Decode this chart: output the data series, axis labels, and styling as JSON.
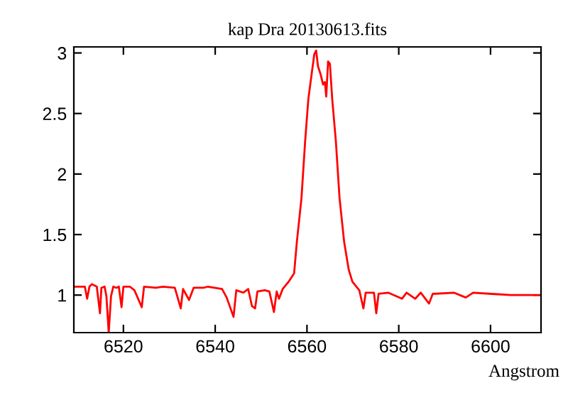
{
  "chart_data": {
    "type": "line",
    "title": "kap Dra 20130613.fits",
    "xlabel": "Angstrom",
    "xlim": [
      6509.2,
      6611
    ],
    "xticks": [
      6520,
      6540,
      6560,
      6580,
      6600
    ],
    "ylim": [
      0.69,
      3.05
    ],
    "yticks": [
      1,
      1.5,
      2,
      2.5,
      3
    ],
    "series": [
      {
        "color": "#ff0000",
        "x": [
          6509.2,
          6511.6,
          6512.1,
          6512.6,
          6513.1,
          6514.2,
          6514.9,
          6515.2,
          6515.9,
          6516.3,
          6516.8,
          6517.3,
          6517.8,
          6518.5,
          6519.0,
          6519.6,
          6520.0,
          6521.4,
          6522.4,
          6524.0,
          6524.5,
          6527.1,
          6528.6,
          6531.2,
          6532.5,
          6533.0,
          6534.3,
          6535.3,
          6537.4,
          6538.4,
          6541.5,
          6542.5,
          6544.0,
          6544.6,
          6546.1,
          6547.2,
          6548.0,
          6548.7,
          6549.2,
          6550.8,
          6551.8,
          6552.8,
          6553.4,
          6553.9,
          6554.7,
          6556.0,
          6557.2,
          6557.8,
          6558.8,
          6559.6,
          6560.3,
          6561.1,
          6561.6,
          6562.0,
          6562.4,
          6563.0,
          6563.5,
          6563.9,
          6564.2,
          6564.6,
          6565.0,
          6565.5,
          6566.3,
          6567.1,
          6568.1,
          6569.1,
          6569.9,
          6571.4,
          6572.3,
          6572.8,
          6574.6,
          6575.1,
          6575.6,
          6577.7,
          6580.7,
          6581.7,
          6583.6,
          6584.8,
          6586.6,
          6587.4,
          6592.0,
          6594.6,
          6596.2,
          6600.3,
          6604.4,
          6611.0
        ],
        "values": [
          1.07,
          1.07,
          0.97,
          1.07,
          1.09,
          1.07,
          0.85,
          1.06,
          1.07,
          0.99,
          0.69,
          0.99,
          1.07,
          1.06,
          1.07,
          0.9,
          1.07,
          1.07,
          1.04,
          0.9,
          1.07,
          1.06,
          1.07,
          1.06,
          0.89,
          1.05,
          0.96,
          1.06,
          1.06,
          1.07,
          1.05,
          0.98,
          0.82,
          1.04,
          1.02,
          1.05,
          0.91,
          0.89,
          1.03,
          1.04,
          1.03,
          0.86,
          1.03,
          0.97,
          1.05,
          1.11,
          1.18,
          1.44,
          1.8,
          2.27,
          2.62,
          2.85,
          2.99,
          3.02,
          2.89,
          2.82,
          2.74,
          2.76,
          2.64,
          2.93,
          2.91,
          2.62,
          2.27,
          1.8,
          1.44,
          1.21,
          1.11,
          1.04,
          0.89,
          1.02,
          1.02,
          0.85,
          1.01,
          1.02,
          0.97,
          1.02,
          0.97,
          1.02,
          0.93,
          1.01,
          1.02,
          0.98,
          1.02,
          1.01,
          1.0,
          1.0
        ]
      }
    ]
  }
}
